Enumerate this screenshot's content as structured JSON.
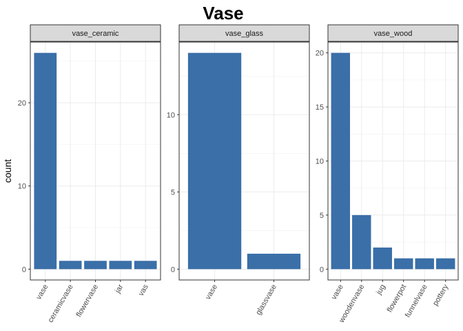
{
  "chart_data": {
    "type": "bar",
    "title": "Vase",
    "ylabel": "count",
    "xlabel": "",
    "bar_color": "#3a6fa8",
    "strip_fill": "#d9d9d9",
    "grid": true,
    "facets": [
      {
        "name": "vase_ceramic",
        "categories": [
          "vase",
          "ceramicvase",
          "flowervase",
          "jar",
          "vas"
        ],
        "values": [
          26,
          1,
          1,
          1,
          1
        ],
        "ylim": [
          -1.3,
          27.3
        ],
        "yticks": [
          0,
          10,
          20
        ]
      },
      {
        "name": "vase_glass",
        "categories": [
          "vase",
          "glassvase"
        ],
        "values": [
          14,
          1
        ],
        "ylim": [
          -0.7,
          14.7
        ],
        "yticks": [
          0,
          5,
          10
        ]
      },
      {
        "name": "vase_wood",
        "categories": [
          "vase",
          "woodenvase",
          "jug",
          "flowerpot",
          "funnelvase",
          "pottery"
        ],
        "values": [
          20,
          5,
          2,
          1,
          1,
          1
        ],
        "ylim": [
          -1.0,
          21.0
        ],
        "yticks": [
          0,
          5,
          10,
          15,
          20
        ]
      }
    ]
  }
}
